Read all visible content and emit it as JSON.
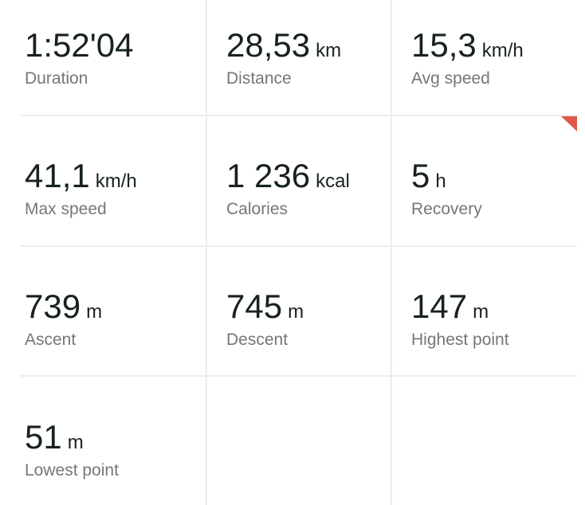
{
  "accent_color": "#e0584a",
  "recovery_flag_icon": "corner-triangle",
  "stats": [
    {
      "value": "1:52'04",
      "unit": "",
      "label": "Duration"
    },
    {
      "value": "28,53",
      "unit": "km",
      "label": "Distance"
    },
    {
      "value": "15,3",
      "unit": "km/h",
      "label": "Avg speed"
    },
    {
      "value": "41,1",
      "unit": "km/h",
      "label": "Max speed"
    },
    {
      "value": "1 236",
      "unit": "kcal",
      "label": "Calories"
    },
    {
      "value": "5",
      "unit": "h",
      "label": "Recovery"
    },
    {
      "value": "739",
      "unit": "m",
      "label": "Ascent"
    },
    {
      "value": "745",
      "unit": "m",
      "label": "Descent"
    },
    {
      "value": "147",
      "unit": "m",
      "label": "Highest point"
    },
    {
      "value": "51",
      "unit": "m",
      "label": "Lowest point"
    }
  ]
}
